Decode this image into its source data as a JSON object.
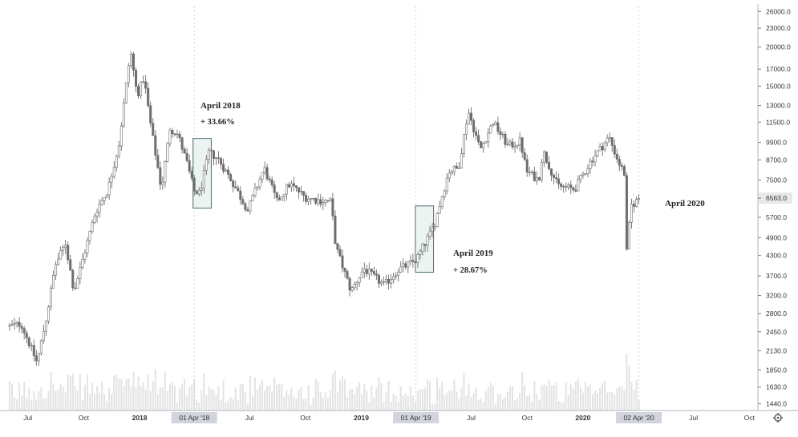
{
  "chart_data": {
    "type": "candlestick",
    "title": "",
    "y_axis": {
      "scale": "log",
      "side": "right",
      "ticks": [
        "26000.0",
        "23000.0",
        "20000.0",
        "17000.0",
        "15000.0",
        "13000.0",
        "11500.0",
        "9900.0",
        "8700.0",
        "7500.0",
        "6563.0",
        "5700.0",
        "4900.0",
        "4300.0",
        "3700.0",
        "3200.0",
        "2800.0",
        "2450.0",
        "2130.0",
        "1850.0",
        "1630.0",
        "1440.0"
      ],
      "current_price_label": "6563.0",
      "range": [
        1420,
        27000
      ]
    },
    "x_axis": {
      "labels": [
        "Jul",
        "Oct",
        "2018",
        "01 Apr '18",
        "Jul",
        "Oct",
        "2019",
        "01 Apr '19",
        "Jul",
        "Oct",
        "2020",
        "02 Apr '20",
        "Jul",
        "Oct"
      ],
      "highlighted": [
        "01 Apr '18",
        "01 Apr '19",
        "02 Apr '20"
      ],
      "start": "2017-06-01",
      "end": "2020-10-15"
    },
    "price_path": [
      [
        "2017-06-01",
        2550
      ],
      [
        "2017-06-20",
        2600
      ],
      [
        "2017-07-16",
        1950
      ],
      [
        "2017-08-01",
        2750
      ],
      [
        "2017-08-15",
        4000
      ],
      [
        "2017-09-01",
        4700
      ],
      [
        "2017-09-15",
        3300
      ],
      [
        "2017-10-01",
        4300
      ],
      [
        "2017-10-20",
        5900
      ],
      [
        "2017-11-10",
        7000
      ],
      [
        "2017-11-28",
        9800
      ],
      [
        "2017-12-17",
        19500
      ],
      [
        "2017-12-28",
        14000
      ],
      [
        "2018-01-08",
        16000
      ],
      [
        "2018-01-20",
        11000
      ],
      [
        "2018-02-06",
        7000
      ],
      [
        "2018-02-20",
        11000
      ],
      [
        "2018-03-05",
        10500
      ],
      [
        "2018-03-20",
        8500
      ],
      [
        "2018-04-01",
        6900
      ],
      [
        "2018-04-10",
        6800
      ],
      [
        "2018-04-25",
        9200
      ],
      [
        "2018-05-10",
        8800
      ],
      [
        "2018-06-01",
        7500
      ],
      [
        "2018-06-28",
        6000
      ],
      [
        "2018-07-25",
        8200
      ],
      [
        "2018-08-15",
        6400
      ],
      [
        "2018-09-05",
        7300
      ],
      [
        "2018-10-01",
        6600
      ],
      [
        "2018-10-25",
        6450
      ],
      [
        "2018-11-12",
        6400
      ],
      [
        "2018-11-20",
        4600
      ],
      [
        "2018-12-15",
        3300
      ],
      [
        "2019-01-05",
        3900
      ],
      [
        "2019-02-08",
        3450
      ],
      [
        "2019-03-01",
        3850
      ],
      [
        "2019-04-01",
        4150
      ],
      [
        "2019-04-30",
        5300
      ],
      [
        "2019-05-25",
        8000
      ],
      [
        "2019-06-10",
        8200
      ],
      [
        "2019-06-26",
        12500
      ],
      [
        "2019-07-16",
        9400
      ],
      [
        "2019-08-06",
        11500
      ],
      [
        "2019-08-31",
        9600
      ],
      [
        "2019-09-20",
        10000
      ],
      [
        "2019-09-30",
        8000
      ],
      [
        "2019-10-20",
        7500
      ],
      [
        "2019-10-27",
        9300
      ],
      [
        "2019-11-20",
        7200
      ],
      [
        "2019-12-18",
        7000
      ],
      [
        "2020-01-15",
        8700
      ],
      [
        "2020-02-13",
        10300
      ],
      [
        "2020-02-28",
        8600
      ],
      [
        "2020-03-10",
        7800
      ],
      [
        "2020-03-13",
        4400
      ],
      [
        "2020-03-20",
        6200
      ],
      [
        "2020-04-01",
        6500
      ],
      [
        "2020-04-05",
        6800
      ]
    ],
    "annotations": [
      {
        "title": "April 2018",
        "change": "+ 33.66%",
        "box_from": "2018-03-30",
        "box_to": "2018-04-29",
        "box_low": 6100,
        "box_high": 10200
      },
      {
        "title": "April 2019",
        "change": "+ 28.67%",
        "box_from": "2019-03-31",
        "box_to": "2019-04-30",
        "box_low": 3800,
        "box_high": 6200
      },
      {
        "title": "April 2020",
        "change": "",
        "box_from": null,
        "box_to": null,
        "box_low": null,
        "box_high": null
      }
    ],
    "volume": {
      "shown": true,
      "color": "#e3e3e3"
    },
    "grid": false,
    "colors": {
      "candle": "#6e6e6e",
      "box_fill": "#e6f0ee",
      "box_stroke": "#4a6f74",
      "axis_label_bg": "#d1d4dc",
      "current_price_bg": "#e8e8e8"
    }
  }
}
